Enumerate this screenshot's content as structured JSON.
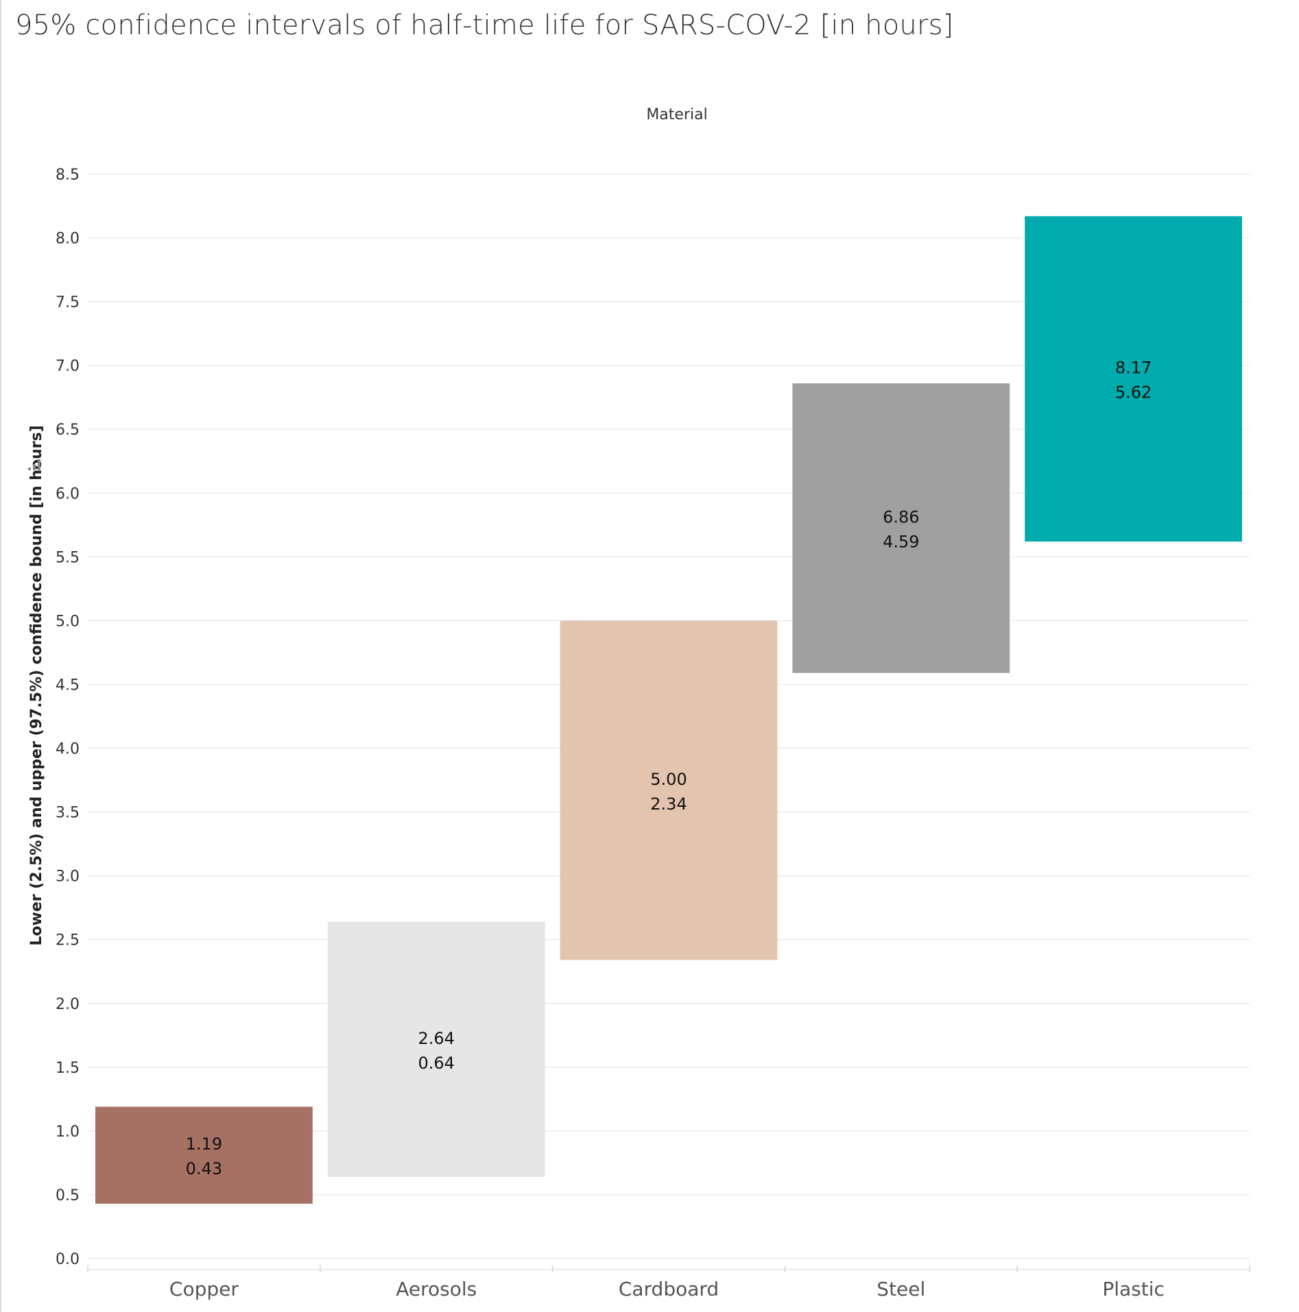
{
  "chart_data": {
    "type": "bar",
    "subtype": "floating-range",
    "title": "95% confidence intervals of half-time life for SARS-COV-2 [in hours]",
    "xlabel": "Material",
    "ylabel": "Lower (2.5%) and upper (97.5%)  confidence bound [in hours]",
    "ylim": [
      0,
      8.5
    ],
    "y_ticks": [
      "0.0",
      "0.5",
      "1.0",
      "1.5",
      "2.0",
      "2.5",
      "3.0",
      "3.5",
      "4.0",
      "4.5",
      "5.0",
      "5.5",
      "6.0",
      "6.5",
      "7.0",
      "7.5",
      "8.0",
      "8.5"
    ],
    "grid": true,
    "categories": [
      "Copper",
      "Aerosols",
      "Cardboard",
      "Steel",
      "Plastic"
    ],
    "lower": [
      0.43,
      0.64,
      2.34,
      4.59,
      5.62
    ],
    "upper": [
      1.19,
      2.64,
      5.0,
      6.86,
      8.17
    ],
    "upper_labels": [
      "1.19",
      "2.64",
      "5.00",
      "6.86",
      "8.17"
    ],
    "lower_labels": [
      "0.43",
      "0.64",
      "2.34",
      "4.59",
      "5.62"
    ],
    "colors": [
      "#a67063",
      "#e6e6e6",
      "#e3c4ae",
      "#a0a0a0",
      "#00abad"
    ]
  }
}
